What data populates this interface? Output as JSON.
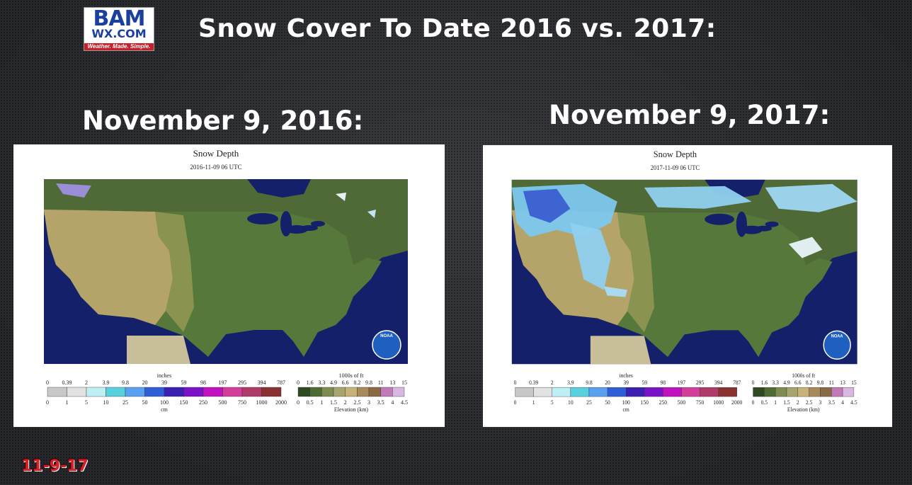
{
  "logo": {
    "brand": "BAM",
    "site": "WX.COM",
    "tagline": "Weather. Made. Simple."
  },
  "title": "Snow Cover To Date 2016 vs. 2017:",
  "panels": [
    {
      "label": "November 9, 2016:",
      "map_title": "Snow Depth",
      "map_date": "2016-11-09 06 UTC"
    },
    {
      "label": "November 9, 2017:",
      "map_title": "Snow Depth",
      "map_date": "2017-11-09 06 UTC"
    }
  ],
  "legend": {
    "snow_unit_top": "inches",
    "snow_inches": [
      "0",
      "0.39",
      "2",
      "3.9",
      "9.8",
      "20",
      "39",
      "59",
      "98",
      "197",
      "295",
      "394",
      "787"
    ],
    "snow_cm": [
      "0",
      "1",
      "5",
      "10",
      "25",
      "50",
      "100",
      "150",
      "250",
      "500",
      "750",
      "1000",
      "2000"
    ],
    "snow_unit_bottom": "cm",
    "elev_unit_top": "1000s of ft",
    "elev_ft": [
      "0",
      "1.6",
      "3.3",
      "4.9",
      "6.6",
      "8.2",
      "9.8",
      "11",
      "13",
      "15"
    ],
    "elev_km": [
      "0",
      "0.5",
      "1",
      "1.5",
      "2",
      "2.5",
      "3",
      "3.5",
      "4",
      "4.5"
    ],
    "elev_unit_bottom": "Elevation (km)",
    "agency": "NOAA"
  },
  "footer": "11-9-17"
}
